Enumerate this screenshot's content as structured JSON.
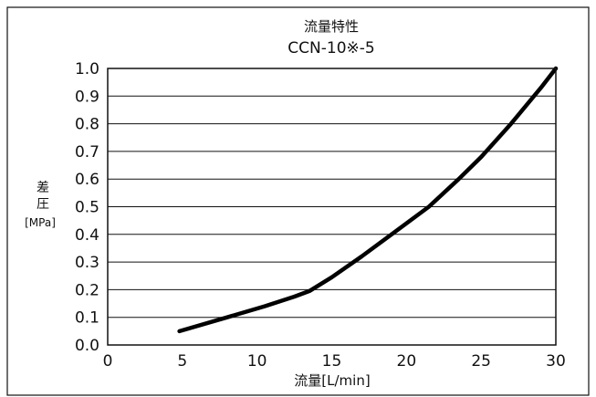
{
  "chart_data": {
    "type": "line",
    "title": "流量特性",
    "subtitle": "CCN-10※-5",
    "xlabel": "流量[L/min]",
    "ylabel_chars": [
      "差",
      "圧"
    ],
    "ylabel_unit": "[MPa]",
    "xlim": [
      0,
      30
    ],
    "ylim": [
      0,
      1.0
    ],
    "xticks": [
      0,
      5,
      10,
      15,
      20,
      25,
      30
    ],
    "xtick_labels": [
      "0",
      "5",
      "10",
      "15",
      "20",
      "25",
      "30"
    ],
    "yticks": [
      0.0,
      0.1,
      0.2,
      0.3,
      0.4,
      0.5,
      0.6,
      0.7,
      0.8,
      0.9,
      1.0
    ],
    "ytick_labels": [
      "0.0",
      "0.1",
      "0.2",
      "0.3",
      "0.4",
      "0.5",
      "0.6",
      "0.7",
      "0.8",
      "0.9",
      "1.0"
    ],
    "grid": "horizontal",
    "series": [
      {
        "x": [
          4.8,
          8,
          10.5,
          12.5,
          13.5,
          15,
          17,
          19,
          21.5,
          23.5,
          25,
          27,
          29,
          30
        ],
        "y": [
          0.05,
          0.1,
          0.14,
          0.175,
          0.195,
          0.245,
          0.32,
          0.4,
          0.5,
          0.6,
          0.68,
          0.8,
          0.93,
          1.0
        ]
      }
    ]
  }
}
